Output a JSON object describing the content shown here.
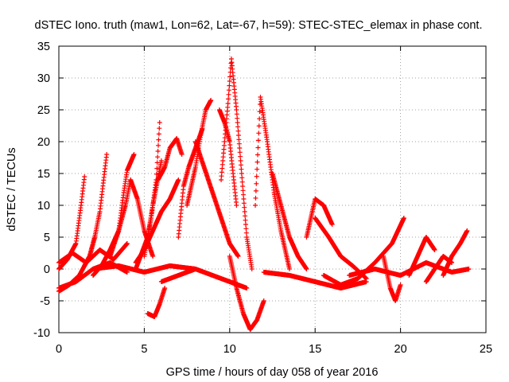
{
  "chart_data": {
    "type": "scatter",
    "title": "dSTEC Iono. truth (maw1, Lon=62, Lat=-67, h=59): STEC-STEC_elemax in phase cont.",
    "xlabel": "GPS time / hours of day 058 of year 2016",
    "ylabel": "dSTEC  / TECUs",
    "xlim": [
      0,
      25
    ],
    "ylim": [
      -10,
      35
    ],
    "xticks": [
      0,
      5,
      10,
      15,
      20,
      25
    ],
    "yticks": [
      -10,
      -5,
      0,
      5,
      10,
      15,
      20,
      25,
      30,
      35
    ],
    "grid": true,
    "marker": "+",
    "series_color": "#ff0000",
    "series": [
      {
        "x": [
          0.0,
          0.5,
          1.0,
          1.3,
          1.5
        ],
        "y": [
          0.0,
          1.5,
          4.0,
          10.0,
          14.5
        ]
      },
      {
        "x": [
          0.0,
          0.6,
          1.2,
          1.8,
          2.1
        ],
        "y": [
          -3.5,
          -2.5,
          -1.0,
          2.0,
          5.0
        ]
      },
      {
        "x": [
          1.5,
          1.8,
          2.1,
          2.4,
          2.8
        ],
        "y": [
          0.5,
          2.0,
          5.0,
          9.0,
          18.0
        ]
      },
      {
        "x": [
          2.0,
          2.5,
          3.0,
          3.5,
          3.9,
          4.2
        ],
        "y": [
          -1.0,
          0.5,
          3.0,
          6.0,
          10.0,
          14.0
        ]
      },
      {
        "x": [
          4.2,
          4.6,
          5.0,
          5.5
        ],
        "y": [
          14.0,
          11.0,
          6.0,
          2.0
        ]
      },
      {
        "x": [
          3.0,
          3.5,
          3.8,
          4.0,
          4.4
        ],
        "y": [
          2.0,
          6.0,
          12.0,
          15.5,
          18.0
        ]
      },
      {
        "x": [
          4.5,
          5.2,
          5.5,
          6.0
        ],
        "y": [
          0.0,
          5.0,
          10.0,
          17.0
        ]
      },
      {
        "x": [
          5.2,
          5.6,
          5.9,
          6.2
        ],
        "y": [
          -7.0,
          -7.5,
          -5.5,
          -3.0
        ]
      },
      {
        "x": [
          5.0,
          5.4,
          5.7,
          5.9
        ],
        "y": [
          2.0,
          8.0,
          14.0,
          23.0
        ]
      },
      {
        "x": [
          4.5,
          5.0,
          5.5,
          6.0,
          6.5,
          7.0
        ],
        "y": [
          1.0,
          3.0,
          6.0,
          9.0,
          11.0,
          14.0
        ]
      },
      {
        "x": [
          5.8,
          6.2,
          6.5,
          6.9,
          7.2
        ],
        "y": [
          14.0,
          16.0,
          19.0,
          20.5,
          18.0
        ]
      },
      {
        "x": [
          7.0,
          7.3,
          7.6,
          8.0,
          8.4
        ],
        "y": [
          5.0,
          13.0,
          16.0,
          19.0,
          22.0
        ]
      },
      {
        "x": [
          7.5,
          8.0,
          8.3,
          8.6,
          8.9
        ],
        "y": [
          10.0,
          16.0,
          21.0,
          25.0,
          26.5
        ]
      },
      {
        "x": [
          8.0,
          8.5,
          9.0,
          9.5,
          10.0,
          10.5
        ],
        "y": [
          20.0,
          16.0,
          12.0,
          8.0,
          4.0,
          2.0
        ]
      },
      {
        "x": [
          9.4,
          9.7,
          10.0,
          10.2,
          10.4
        ],
        "y": [
          25.0,
          23.0,
          20.0,
          15.0,
          10.0
        ]
      },
      {
        "x": [
          9.5,
          9.9,
          10.1,
          10.4,
          10.7,
          11.0,
          11.3
        ],
        "y": [
          14.0,
          26.0,
          33.0,
          25.0,
          15.0,
          5.0,
          0.0
        ]
      },
      {
        "x": [
          10.0,
          10.4,
          10.8,
          11.2,
          11.6,
          12.0
        ],
        "y": [
          2.0,
          -3.0,
          -7.0,
          -9.5,
          -8.0,
          -5.0
        ]
      },
      {
        "x": [
          11.5,
          11.8,
          12.2,
          12.6,
          13.0,
          13.5
        ],
        "y": [
          10.0,
          27.0,
          20.0,
          12.0,
          6.0,
          0.0
        ]
      },
      {
        "x": [
          12.5,
          13.0,
          13.5,
          14.0,
          14.5
        ],
        "y": [
          15.0,
          10.0,
          5.0,
          2.0,
          0.0
        ]
      },
      {
        "x": [
          14.5,
          15.0,
          15.5,
          16.0
        ],
        "y": [
          5.0,
          11.0,
          10.0,
          7.0
        ]
      },
      {
        "x": [
          15.0,
          15.8,
          16.5,
          17.2,
          18.0
        ],
        "y": [
          8.0,
          5.0,
          2.0,
          0.5,
          -1.5
        ]
      },
      {
        "x": [
          15.5,
          16.5,
          17.5,
          18.5,
          19.5,
          20.2
        ],
        "y": [
          -1.0,
          -2.5,
          -1.5,
          1.0,
          4.0,
          8.0
        ]
      },
      {
        "x": [
          19.0,
          19.4,
          19.7,
          20.0
        ],
        "y": [
          2.0,
          -3.0,
          -5.0,
          -2.5
        ]
      },
      {
        "x": [
          20.5,
          21.0,
          21.5,
          22.0
        ],
        "y": [
          -1.0,
          2.0,
          5.0,
          3.0
        ]
      },
      {
        "x": [
          21.5,
          22.0,
          22.5,
          23.0
        ],
        "y": [
          -2.0,
          0.0,
          2.0,
          1.0
        ]
      },
      {
        "x": [
          22.5,
          23.0,
          23.5,
          23.9
        ],
        "y": [
          -1.0,
          2.0,
          4.0,
          6.0
        ]
      },
      {
        "x": [
          0.0,
          1.0,
          2.0,
          3.0,
          4.0
        ],
        "y": [
          -3.0,
          -2.0,
          0.0,
          1.0,
          -0.5
        ]
      },
      {
        "x": [
          2.0,
          3.5,
          5.0,
          6.5,
          8.0
        ],
        "y": [
          0.0,
          0.5,
          -0.5,
          0.5,
          0.0
        ]
      },
      {
        "x": [
          6.0,
          7.0,
          8.0,
          9.0,
          10.0,
          11.0
        ],
        "y": [
          -2.0,
          -1.0,
          0.0,
          -1.0,
          -2.0,
          -3.0
        ]
      },
      {
        "x": [
          12.0,
          13.5,
          15.0,
          16.5,
          18.0
        ],
        "y": [
          -0.5,
          -1.0,
          -2.0,
          -3.0,
          -2.0
        ]
      },
      {
        "x": [
          17.0,
          18.5,
          20.0,
          21.5,
          23.0,
          24.0
        ],
        "y": [
          -1.0,
          0.0,
          -1.0,
          1.0,
          -0.5,
          0.0
        ]
      },
      {
        "x": [
          0.0,
          0.8,
          1.6,
          2.4,
          3.2,
          4.0
        ],
        "y": [
          1.0,
          2.5,
          1.0,
          3.0,
          1.5,
          4.0
        ]
      }
    ]
  }
}
